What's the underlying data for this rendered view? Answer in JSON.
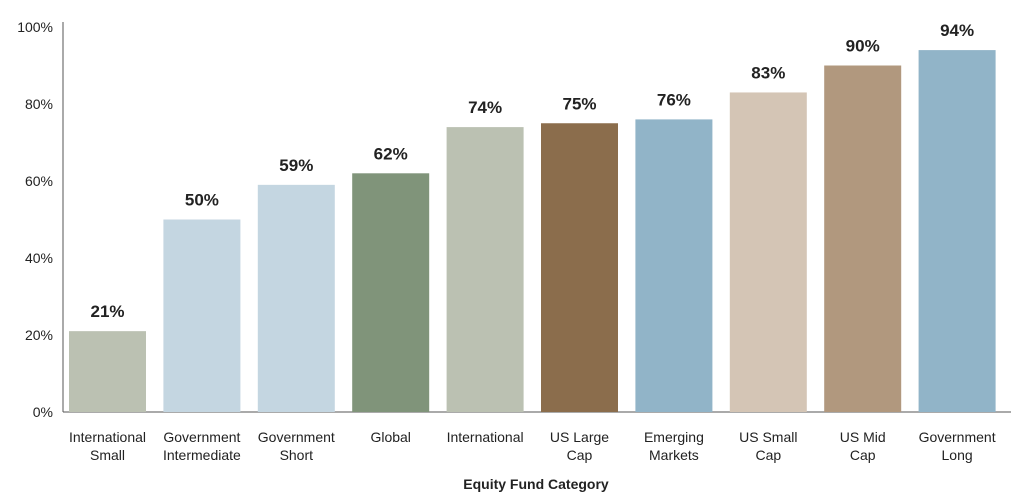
{
  "chart_data": {
    "type": "bar",
    "categories": [
      [
        "International",
        "Small"
      ],
      [
        "Government",
        "Intermediate"
      ],
      [
        "Government",
        "Short"
      ],
      [
        "Global"
      ],
      [
        "International"
      ],
      [
        "US Large",
        "Cap"
      ],
      [
        "Emerging",
        "Markets"
      ],
      [
        "US Small",
        "Cap"
      ],
      [
        "US Mid",
        "Cap"
      ],
      [
        "Government",
        "Long"
      ]
    ],
    "values": [
      21,
      50,
      59,
      62,
      74,
      75,
      76,
      83,
      90,
      94
    ],
    "value_labels": [
      "21%",
      "50%",
      "59%",
      "62%",
      "74%",
      "75%",
      "76%",
      "83%",
      "90%",
      "94%"
    ],
    "colors": [
      "#BBC1B2",
      "#C4D6E1",
      "#C4D6E1",
      "#80947A",
      "#BBC1B2",
      "#8B6D4C",
      "#91B4C8",
      "#D4C5B5",
      "#B1987E",
      "#91B4C8"
    ],
    "yticks": [
      "0%",
      "20%",
      "40%",
      "60%",
      "80%",
      "100%"
    ],
    "ylim": [
      0,
      100
    ],
    "xlabel": "Equity Fund Category",
    "ylabel": "",
    "title": "",
    "grid": false
  }
}
